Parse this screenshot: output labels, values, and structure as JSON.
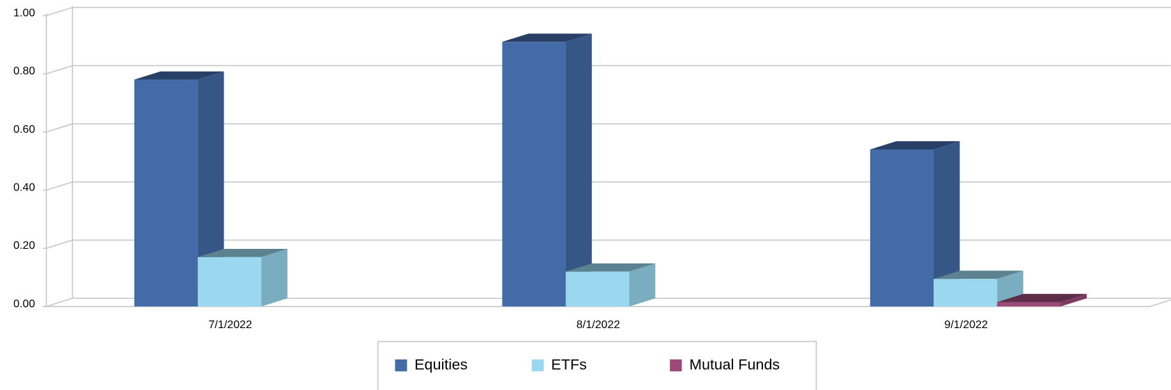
{
  "chart_data": {
    "type": "bar3d",
    "categories": [
      "7/1/2022",
      "8/1/2022",
      "9/1/2022"
    ],
    "series": [
      {
        "name": "Equities",
        "color": "#436ba8",
        "values": [
          0.78,
          0.91,
          0.54
        ]
      },
      {
        "name": "ETFs",
        "color": "#9ad8f0",
        "values": [
          0.17,
          0.12,
          0.095
        ]
      },
      {
        "name": "Mutual Funds",
        "color": "#9b4a78",
        "values": [
          null,
          null,
          0.015
        ]
      }
    ],
    "ylim": [
      0,
      1
    ],
    "yticks": [
      {
        "value": 0,
        "label": "0.00"
      },
      {
        "value": 0.2,
        "label": "0.20"
      },
      {
        "value": 0.4,
        "label": "0.40"
      },
      {
        "value": 0.6,
        "label": "0.60"
      },
      {
        "value": 0.8,
        "label": "0.80"
      },
      {
        "value": 1,
        "label": "1.00"
      }
    ],
    "grid": true,
    "legend": "bottom"
  }
}
